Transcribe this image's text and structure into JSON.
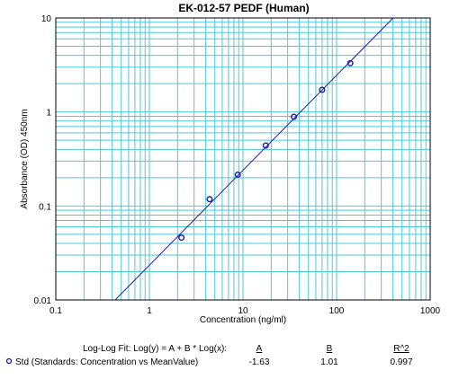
{
  "chart_data": {
    "type": "scatter",
    "title": "EK-012-57  PEDF (Human)",
    "xlabel": "Concentration (ng/ml)",
    "ylabel": "Absorbance (OD) 450nm",
    "x_scale": "log",
    "y_scale": "log",
    "xlim": [
      0.1,
      1000
    ],
    "ylim": [
      0.01,
      10
    ],
    "x_ticks": [
      "0.1",
      "1",
      "10",
      "100",
      "1000"
    ],
    "y_ticks": [
      "0.01",
      "0.1",
      "1",
      "10"
    ],
    "grid": true,
    "series": [
      {
        "name": "Std (Standards: Concentration vs MeanValue)",
        "x": [
          2.2,
          4.4,
          8.8,
          17.5,
          35,
          70,
          140
        ],
        "y": [
          0.046,
          0.118,
          0.215,
          0.44,
          0.89,
          1.72,
          3.3
        ]
      }
    ],
    "fit": {
      "label": "Log-Log Fit: Log(y) = A + B * Log(x):",
      "A_label": "A",
      "B_label": "B",
      "R2_label": "R^2",
      "A": "-1.63",
      "B": "1.01",
      "R2": "0.997",
      "A_value": -1.63,
      "B_value": 1.01
    },
    "colors": {
      "grid": "#4ec9d9",
      "series": "#1a1ab0",
      "fit_line": "#1a1ab0"
    }
  }
}
